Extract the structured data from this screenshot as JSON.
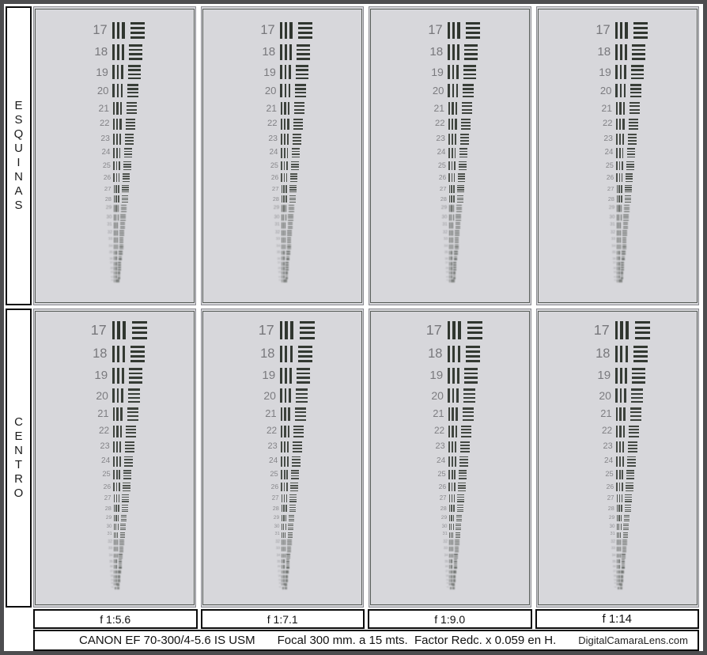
{
  "row_labels": {
    "top": "ESQUINAS",
    "bottom": "CENTRO"
  },
  "columns": [
    {
      "aperture": "f 1:5.6"
    },
    {
      "aperture": "f 1:7.1"
    },
    {
      "aperture": "f 1:9.0"
    },
    {
      "aperture": "f 1:14"
    }
  ],
  "test_chart": {
    "numbers": [
      17,
      18,
      19,
      20,
      21,
      22,
      23,
      24,
      25,
      26,
      27,
      28,
      29,
      30,
      31,
      32,
      33,
      34,
      35,
      36,
      37,
      38,
      39,
      40,
      41
    ],
    "vertical_bars_per_element": 3,
    "horizontal_bars_per_element": 4
  },
  "footer": {
    "lens": "CANON EF 70-300/4-5.6 IS USM",
    "settings": "Focal 300 mm. a 15 mts.  Factor Redc. x 0.059 en H.",
    "site": "DigitalCamaraLens.com"
  },
  "colors": {
    "panel_bg": "#d7d7db",
    "bar": "#30362f",
    "number": "#77777b",
    "outer_frame": "#4d4d4f",
    "panel_frame": "#565b57",
    "box_border": "#0a0a0a"
  }
}
